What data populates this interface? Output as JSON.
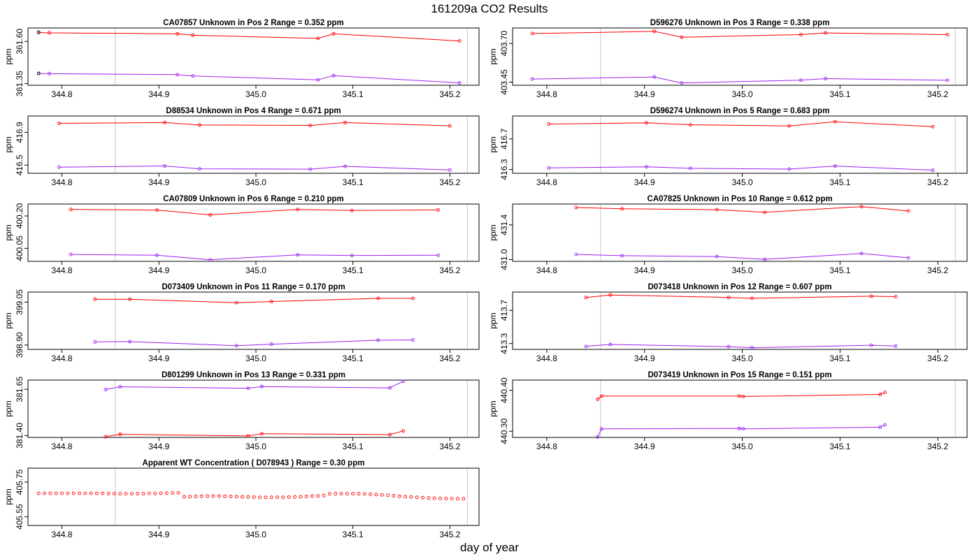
{
  "title": "161209a  CO2 Results",
  "xlabel": "day of year",
  "chart_data": [
    {
      "type": "line",
      "title": "CA07857    Unknown in Pos 2          Range =  0.352 ppm",
      "ylabel": "ppm",
      "xlim": [
        344.765,
        345.23
      ],
      "ylim": [
        361.34,
        361.68
      ],
      "xticks": [
        "344.8",
        "344.9",
        "345.0",
        "345.1",
        "345.2"
      ],
      "yticks": [
        "361.35",
        "361.60"
      ],
      "vlines": [
        344.855,
        345.218
      ],
      "series": [
        {
          "name": "red",
          "color": "#ff0000",
          "x": [
            344.776,
            344.787,
            344.919,
            344.935,
            345.064,
            345.08,
            345.21
          ],
          "y": [
            361.653,
            361.651,
            361.645,
            361.637,
            361.618,
            361.645,
            361.603
          ]
        },
        {
          "name": "purple",
          "color": "#a020f0",
          "x": [
            344.776,
            344.787,
            344.919,
            344.935,
            345.064,
            345.08,
            345.21
          ],
          "y": [
            361.41,
            361.409,
            361.403,
            361.395,
            361.372,
            361.397,
            361.354
          ]
        }
      ],
      "extra_points": [
        {
          "color": "#000000",
          "x": [
            344.776,
            344.776
          ],
          "y": [
            361.655,
            361.41
          ]
        }
      ]
    },
    {
      "type": "line",
      "title": "D596276    Unknown in Pos 3          Range =  0.338 ppm",
      "ylabel": "ppm",
      "xlim": [
        344.765,
        345.23
      ],
      "ylim": [
        403.43,
        403.8
      ],
      "xticks": [
        "344.8",
        "344.9",
        "345.0",
        "345.1",
        "345.2"
      ],
      "yticks": [
        "403.45",
        "403.70"
      ],
      "vlines": [
        344.855,
        345.218
      ],
      "series": [
        {
          "name": "red",
          "color": "#ff0000",
          "x": [
            344.785,
            344.91,
            344.938,
            345.06,
            345.085,
            345.21
          ],
          "y": [
            403.764,
            403.778,
            403.74,
            403.757,
            403.768,
            403.757
          ]
        },
        {
          "name": "purple",
          "color": "#a020f0",
          "x": [
            344.785,
            344.91,
            344.938,
            345.06,
            345.085,
            345.21
          ],
          "y": [
            403.47,
            403.483,
            403.445,
            403.463,
            403.473,
            403.462
          ]
        }
      ]
    },
    {
      "type": "line",
      "title": "D88534    Unknown in Pos 4          Range =  0.671 ppm",
      "ylabel": "ppm",
      "xlim": [
        344.765,
        345.23
      ],
      "ylim": [
        416.4,
        417.1
      ],
      "xticks": [
        "344.8",
        "344.9",
        "345.0",
        "345.1",
        "345.2"
      ],
      "yticks": [
        "416.5",
        "416.9"
      ],
      "vlines": [
        344.855,
        345.218
      ],
      "series": [
        {
          "name": "red",
          "color": "#ff0000",
          "x": [
            344.797,
            344.906,
            344.942,
            345.056,
            345.092,
            345.2
          ],
          "y": [
            417.01,
            417.02,
            416.99,
            416.985,
            417.02,
            416.98
          ]
        },
        {
          "name": "purple",
          "color": "#a020f0",
          "x": [
            344.797,
            344.906,
            344.942,
            345.056,
            345.092,
            345.2
          ],
          "y": [
            416.475,
            416.49,
            416.455,
            416.45,
            416.485,
            416.44
          ]
        }
      ]
    },
    {
      "type": "line",
      "title": "D596274    Unknown in Pos 5          Range =  0.683 ppm",
      "ylabel": "ppm",
      "xlim": [
        344.765,
        345.23
      ],
      "ylim": [
        416.25,
        417.0
      ],
      "xticks": [
        "344.8",
        "344.9",
        "345.0",
        "345.1",
        "345.2"
      ],
      "yticks": [
        "416.3",
        "416.7"
      ],
      "vlines": [
        344.855,
        345.218
      ],
      "series": [
        {
          "name": "red",
          "color": "#ff0000",
          "x": [
            344.802,
            344.902,
            344.947,
            345.048,
            345.095,
            345.195
          ],
          "y": [
            416.895,
            416.91,
            416.885,
            416.87,
            416.925,
            416.86
          ]
        },
        {
          "name": "purple",
          "color": "#a020f0",
          "x": [
            344.802,
            344.902,
            344.947,
            345.048,
            345.095,
            345.195
          ],
          "y": [
            416.32,
            416.335,
            416.315,
            416.305,
            416.345,
            416.29
          ]
        }
      ]
    },
    {
      "type": "line",
      "title": "CA07809    Unknown in Pos 6          Range =  0.210 ppm",
      "ylabel": "ppm",
      "xlim": [
        344.765,
        345.23
      ],
      "ylim": [
        399.99,
        400.255
      ],
      "xticks": [
        "344.8",
        "344.9",
        "345.0",
        "345.1",
        "345.2"
      ],
      "yticks": [
        "400.05",
        "400.20"
      ],
      "vlines": [
        344.855,
        345.218
      ],
      "series": [
        {
          "name": "red",
          "color": "#ff0000",
          "x": [
            344.809,
            344.898,
            344.953,
            345.043,
            345.099,
            345.188
          ],
          "y": [
            400.23,
            400.227,
            400.205,
            400.23,
            400.225,
            400.228
          ]
        },
        {
          "name": "purple",
          "color": "#a020f0",
          "x": [
            344.809,
            344.898,
            344.953,
            345.043,
            345.099,
            345.188
          ],
          "y": [
            400.022,
            400.018,
            399.997,
            400.02,
            400.017,
            400.018
          ]
        }
      ]
    },
    {
      "type": "line",
      "title": "CA07825    Unknown in Pos 10          Range =  0.612 ppm",
      "ylabel": "ppm",
      "xlim": [
        344.765,
        345.23
      ],
      "ylim": [
        430.98,
        431.64
      ],
      "xticks": [
        "344.8",
        "344.9",
        "345.0",
        "345.1",
        "345.2"
      ],
      "yticks": [
        "431.0",
        "431.4"
      ],
      "vlines": [
        344.855,
        345.218
      ],
      "series": [
        {
          "name": "red",
          "color": "#ff0000",
          "x": [
            344.83,
            344.877,
            344.974,
            345.023,
            345.122,
            345.17
          ],
          "y": [
            431.6,
            431.585,
            431.575,
            431.545,
            431.61,
            431.56
          ]
        },
        {
          "name": "purple",
          "color": "#a020f0",
          "x": [
            344.83,
            344.877,
            344.974,
            345.023,
            345.122,
            345.17
          ],
          "y": [
            431.06,
            431.045,
            431.035,
            431.003,
            431.07,
            431.02
          ]
        }
      ]
    },
    {
      "type": "line",
      "title": "D073409    Unknown in Pos 11          Range =  0.170 ppm",
      "ylabel": "ppm",
      "xlim": [
        344.765,
        345.23
      ],
      "ylim": [
        398.885,
        399.085
      ],
      "xticks": [
        "344.8",
        "344.9",
        "345.0",
        "345.1",
        "345.2"
      ],
      "yticks": [
        "398.90",
        "399.05"
      ],
      "vlines": [
        344.855,
        345.218
      ],
      "series": [
        {
          "name": "red",
          "color": "#ff0000",
          "x": [
            344.834,
            344.87,
            344.98,
            345.016,
            345.126,
            345.162
          ],
          "y": [
            399.06,
            399.06,
            399.048,
            399.052,
            399.063,
            399.063
          ]
        },
        {
          "name": "purple",
          "color": "#a020f0",
          "x": [
            344.834,
            344.87,
            344.98,
            345.016,
            345.126,
            345.162
          ],
          "y": [
            398.911,
            398.912,
            398.898,
            398.903,
            398.917,
            398.918
          ]
        }
      ]
    },
    {
      "type": "line",
      "title": "D073418    Unknown in Pos 12          Range =  0.607 ppm",
      "ylabel": "ppm",
      "xlim": [
        344.765,
        345.23
      ],
      "ylim": [
        413.23,
        413.92
      ],
      "xticks": [
        "344.8",
        "344.9",
        "345.0",
        "345.1",
        "345.2"
      ],
      "yticks": [
        "413.3",
        "413.7"
      ],
      "vlines": [
        344.855,
        345.218
      ],
      "series": [
        {
          "name": "red",
          "color": "#ff0000",
          "x": [
            344.84,
            344.865,
            344.986,
            345.01,
            345.132,
            345.157
          ],
          "y": [
            413.855,
            413.885,
            413.855,
            413.845,
            413.87,
            413.865
          ]
        },
        {
          "name": "purple",
          "color": "#a020f0",
          "x": [
            344.84,
            344.865,
            344.986,
            345.01,
            345.132,
            345.157
          ],
          "y": [
            413.265,
            413.29,
            413.263,
            413.25,
            413.28,
            413.27
          ]
        }
      ]
    },
    {
      "type": "line",
      "title": "D801299    Unknown in Pos 13          Range =  0.331 ppm",
      "ylabel": "ppm",
      "xlim": [
        344.765,
        345.23
      ],
      "ylim": [
        381.39,
        381.7
      ],
      "xticks": [
        "344.8",
        "344.9",
        "345.0",
        "345.1",
        "345.2"
      ],
      "yticks": [
        "381.40",
        "381.65"
      ],
      "vlines": [
        344.855,
        345.218
      ],
      "series": [
        {
          "name": "red",
          "color": "#ff0000",
          "x": [
            344.845,
            344.86,
            344.992,
            345.006,
            345.138,
            345.152
          ],
          "y": [
            381.394,
            381.407,
            381.398,
            381.41,
            381.405,
            381.425
          ]
        },
        {
          "name": "purple",
          "color": "#a020f0",
          "x": [
            344.845,
            344.86,
            344.992,
            345.006,
            345.138,
            345.152
          ],
          "y": [
            381.649,
            381.664,
            381.656,
            381.665,
            381.658,
            381.694
          ]
        }
      ]
    },
    {
      "type": "line",
      "title": "D073419    Unknown in Pos 15          Range =  0.151 ppm",
      "ylabel": "ppm",
      "xlim": [
        344.765,
        345.23
      ],
      "ylim": [
        440.285,
        440.425
      ],
      "xticks": [
        "344.8",
        "344.9",
        "345.0",
        "345.1",
        "345.2"
      ],
      "yticks": [
        "440.30",
        "440.40"
      ],
      "vlines": [
        344.855,
        345.218
      ],
      "series": [
        {
          "name": "red",
          "color": "#ff0000",
          "x": [
            344.852,
            344.856,
            344.997,
            345.001,
            345.141,
            345.146
          ],
          "y": [
            440.378,
            440.386,
            440.386,
            440.385,
            440.39,
            440.395
          ]
        },
        {
          "name": "purple",
          "color": "#a020f0",
          "x": [
            344.852,
            344.856,
            344.997,
            345.001,
            345.141,
            345.146
          ],
          "y": [
            440.286,
            440.306,
            440.307,
            440.306,
            440.31,
            440.316
          ]
        }
      ]
    },
    {
      "type": "scatter",
      "title": "Apparent WT Concentration ( D078943 )          Range = 0.30 ppm",
      "ylabel": "ppm",
      "xlim": [
        344.765,
        345.23
      ],
      "ylim": [
        405.5,
        405.83
      ],
      "xticks": [
        "344.8",
        "344.9",
        "345.0",
        "345.1",
        "345.2"
      ],
      "yticks": [
        "405.55",
        "405.75"
      ],
      "vlines": [
        344.855,
        345.218
      ],
      "scatter_color": "#ff0000",
      "x": [
        344.776,
        344.782,
        344.788,
        344.794,
        344.8,
        344.806,
        344.812,
        344.818,
        344.824,
        344.83,
        344.836,
        344.842,
        344.848,
        344.854,
        344.86,
        344.866,
        344.872,
        344.878,
        344.884,
        344.89,
        344.896,
        344.902,
        344.908,
        344.914,
        344.92,
        344.926,
        344.932,
        344.938,
        344.944,
        344.95,
        344.956,
        344.962,
        344.968,
        344.974,
        344.98,
        344.986,
        344.992,
        344.998,
        345.004,
        345.01,
        345.016,
        345.022,
        345.028,
        345.034,
        345.04,
        345.046,
        345.052,
        345.058,
        345.064,
        345.07,
        345.076,
        345.082,
        345.088,
        345.094,
        345.1,
        345.106,
        345.112,
        345.118,
        345.124,
        345.13,
        345.136,
        345.142,
        345.148,
        345.154,
        345.16,
        345.166,
        345.172,
        345.178,
        345.184,
        345.19,
        345.196,
        345.202,
        345.208,
        345.214
      ],
      "y": [
        405.685,
        405.685,
        405.685,
        405.685,
        405.685,
        405.685,
        405.685,
        405.685,
        405.685,
        405.685,
        405.685,
        405.685,
        405.684,
        405.684,
        405.683,
        405.683,
        405.683,
        405.683,
        405.683,
        405.684,
        405.684,
        405.685,
        405.686,
        405.687,
        405.688,
        405.665,
        405.666,
        405.667,
        405.668,
        405.669,
        405.669,
        405.669,
        405.668,
        405.667,
        405.666,
        405.665,
        405.664,
        405.663,
        405.662,
        405.662,
        405.662,
        405.662,
        405.662,
        405.663,
        405.664,
        405.665,
        405.667,
        405.669,
        405.67,
        405.672,
        405.682,
        405.683,
        405.683,
        405.683,
        405.683,
        405.683,
        405.682,
        405.68,
        405.678,
        405.676,
        405.674,
        405.671,
        405.668,
        405.666,
        405.664,
        405.662,
        405.66,
        405.658,
        405.657,
        405.656,
        405.655,
        405.655,
        405.654,
        405.654
      ]
    }
  ]
}
